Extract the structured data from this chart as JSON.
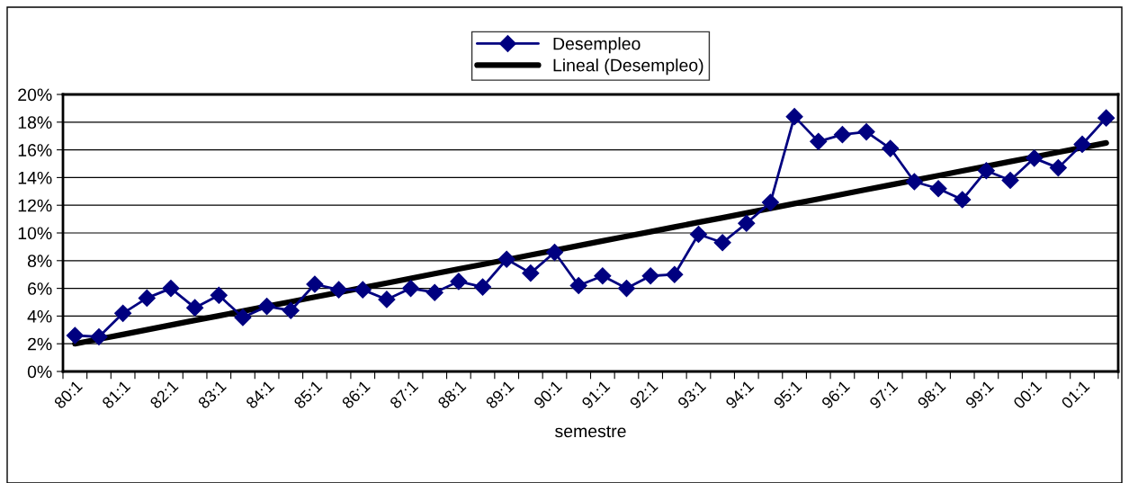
{
  "chart_data": {
    "type": "line",
    "xlabel": "semestre",
    "categories": [
      "80:1",
      null,
      "81:1",
      null,
      "82:1",
      null,
      "83:1",
      null,
      "84:1",
      null,
      "85:1",
      null,
      "86:1",
      null,
      "87:1",
      null,
      "88:1",
      null,
      "89:1",
      null,
      "90:1",
      null,
      "91:1",
      null,
      "92:1",
      null,
      "93:1",
      null,
      "94:1",
      null,
      "95:1",
      null,
      "96:1",
      null,
      "97:1",
      null,
      "98:1",
      null,
      "99:1",
      null,
      "00:1",
      null,
      "01:1",
      null
    ],
    "series": [
      {
        "name": "Desempleo",
        "color": "#000080",
        "marker": "diamond",
        "values": [
          2.6,
          2.5,
          4.2,
          5.3,
          6.0,
          4.6,
          5.5,
          3.9,
          4.7,
          4.4,
          6.3,
          5.9,
          5.9,
          5.2,
          6.0,
          5.7,
          6.5,
          6.1,
          8.1,
          7.1,
          8.6,
          6.2,
          6.9,
          6.0,
          6.9,
          7.0,
          9.9,
          9.3,
          10.7,
          12.2,
          18.4,
          16.6,
          17.1,
          17.3,
          16.1,
          13.7,
          13.2,
          12.4,
          14.5,
          13.8,
          15.4,
          14.7,
          16.4,
          18.3
        ]
      },
      {
        "name": "Lineal (Desempleo)",
        "color": "#000000",
        "marker": "none",
        "values": [
          2.0,
          2.34,
          2.67,
          3.01,
          3.35,
          3.69,
          4.02,
          4.36,
          4.7,
          5.03,
          5.37,
          5.71,
          6.05,
          6.38,
          6.72,
          7.06,
          7.4,
          7.73,
          8.07,
          8.41,
          8.74,
          9.08,
          9.42,
          9.76,
          10.09,
          10.43,
          10.77,
          11.1,
          11.44,
          11.78,
          12.12,
          12.45,
          12.79,
          13.13,
          13.47,
          13.8,
          14.14,
          14.48,
          14.81,
          15.15,
          15.49,
          15.83,
          16.16,
          16.5
        ]
      }
    ],
    "ylim": [
      0,
      20
    ],
    "yticks": [
      {
        "value": 0,
        "label": "0%"
      },
      {
        "value": 2,
        "label": "2%"
      },
      {
        "value": 4,
        "label": "4%"
      },
      {
        "value": 6,
        "label": "6%"
      },
      {
        "value": 8,
        "label": "8%"
      },
      {
        "value": 10,
        "label": "10%"
      },
      {
        "value": 12,
        "label": "12%"
      },
      {
        "value": 14,
        "label": "14%"
      },
      {
        "value": 16,
        "label": "16%"
      },
      {
        "value": 18,
        "label": "18%"
      },
      {
        "value": 20,
        "label": "20%"
      }
    ],
    "grid": "y",
    "legend": "top",
    "line_style": "solid"
  }
}
